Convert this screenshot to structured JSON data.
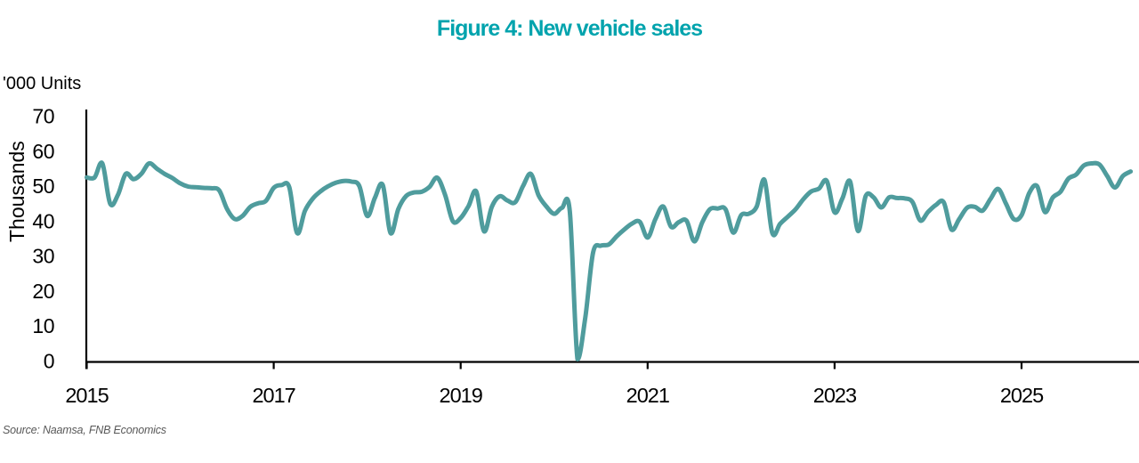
{
  "title": "Figure 4: New vehicle sales",
  "y_unit_label": "'000 Units",
  "y_axis_title": "Thousands",
  "source_note": "Source: Naamsa, FNB Economics",
  "colors": {
    "title": "#00A3AD",
    "line": "#4F9C9D",
    "axis": "#000000",
    "tick_text": "#000000",
    "source_text": "#595959"
  },
  "chart_data": {
    "type": "line",
    "title": "Figure 4: New vehicle sales",
    "ylabel": "Thousands",
    "y_unit": "'000 Units",
    "ylim": [
      0,
      70
    ],
    "y_ticks": [
      70,
      60,
      50,
      40,
      30,
      20,
      10,
      0
    ],
    "x_tick_labels": [
      "2015",
      "2017",
      "2019",
      "2021",
      "2023",
      "2025"
    ],
    "x_start_year": 2015,
    "points_per_year": 12,
    "grid": false,
    "legend_position": "none",
    "series": [
      {
        "name": "New vehicle sales ('000 units, monthly)",
        "color": "#4F9C9D",
        "values": [
          52.5,
          52.5,
          56.5,
          45.0,
          47.5,
          53.5,
          52.0,
          53.5,
          56.5,
          55.0,
          53.5,
          52.3,
          50.8,
          49.9,
          49.7,
          49.5,
          49.4,
          48.8,
          43.5,
          40.6,
          41.5,
          44.1,
          45.1,
          45.8,
          49.5,
          50.3,
          49.7,
          36.6,
          42.9,
          46.4,
          48.5,
          50.0,
          51.0,
          51.5,
          51.3,
          50.0,
          41.5,
          46.7,
          50.3,
          36.6,
          43.5,
          47.2,
          48.2,
          48.4,
          49.8,
          52.4,
          47.5,
          40.0,
          40.9,
          44.3,
          48.5,
          37.1,
          44.1,
          47.1,
          45.9,
          45.4,
          50.0,
          53.5,
          47.4,
          44.2,
          42.1,
          43.8,
          42.9,
          0.5,
          12.5,
          31.0,
          33.0,
          33.3,
          35.6,
          37.6,
          39.3,
          39.8,
          35.3,
          40.6,
          44.2,
          38.4,
          39.7,
          40.1,
          34.2,
          39.6,
          43.4,
          43.6,
          43.4,
          36.7,
          41.7,
          42.1,
          44.2,
          51.8,
          36.6,
          39.2,
          41.3,
          43.4,
          46.3,
          48.5,
          49.3,
          51.5,
          42.5,
          46.5,
          51.3,
          37.2,
          47.2,
          46.8,
          43.9,
          46.8,
          46.6,
          46.5,
          45.5,
          40.2,
          42.6,
          44.6,
          45.4,
          37.6,
          40.6,
          43.8,
          44.1,
          43.0,
          46.3,
          49.2,
          45.0,
          40.6,
          41.7,
          48.1,
          50.0,
          42.6,
          46.7,
          48.4,
          52.1,
          53.3,
          55.9,
          56.5,
          56.2,
          52.9,
          49.6,
          52.9,
          54.2
        ]
      }
    ]
  }
}
